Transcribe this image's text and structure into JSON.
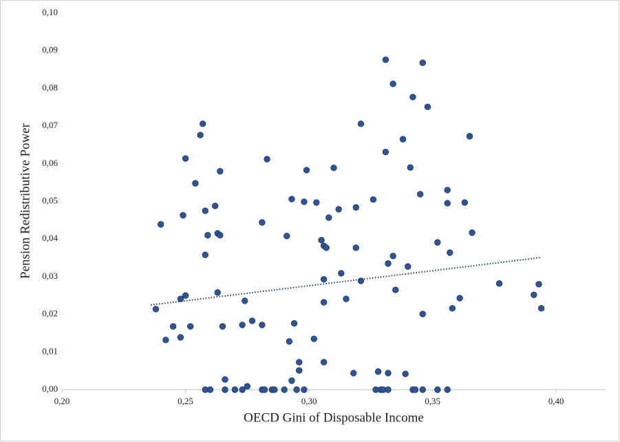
{
  "chart_data": {
    "type": "scatter",
    "x_label": "OECD Gini of Disposable Income",
    "y_label": "Pension Redistributive Power",
    "series": [
      {
        "color": "#2f5496",
        "x": [
          0.238,
          0.24,
          0.242,
          0.245,
          0.248,
          0.248,
          0.249,
          0.25,
          0.25,
          0.252,
          0.254,
          0.256,
          0.257,
          0.258,
          0.258,
          0.259,
          0.258,
          0.26,
          0.262,
          0.263,
          0.263,
          0.264,
          0.264,
          0.265,
          0.266,
          0.266,
          0.27,
          0.273,
          0.274,
          0.273,
          0.275,
          0.277,
          0.281,
          0.281,
          0.281,
          0.282,
          0.283,
          0.285,
          0.286,
          0.29,
          0.291,
          0.292,
          0.293,
          0.293,
          0.294,
          0.295,
          0.296,
          0.296,
          0.298,
          0.298,
          0.299,
          0.302,
          0.303,
          0.305,
          0.306,
          0.306,
          0.306,
          0.306,
          0.307,
          0.308,
          0.31,
          0.312,
          0.313,
          0.315,
          0.318,
          0.319,
          0.319,
          0.321,
          0.321,
          0.326,
          0.327,
          0.328,
          0.329,
          0.33,
          0.331,
          0.331,
          0.332,
          0.332,
          0.332,
          0.334,
          0.334,
          0.335,
          0.338,
          0.339,
          0.34,
          0.341,
          0.342,
          0.342,
          0.343,
          0.345,
          0.346,
          0.346,
          0.346,
          0.348,
          0.352,
          0.352,
          0.356,
          0.356,
          0.356,
          0.357,
          0.358,
          0.361,
          0.363,
          0.365,
          0.366,
          0.377,
          0.391,
          0.393,
          0.394
        ],
        "y": [
          0.0214,
          0.0439,
          0.0132,
          0.0168,
          0.0241,
          0.0139,
          0.0463,
          0.0614,
          0.025,
          0.0168,
          0.0548,
          0.0676,
          0.0706,
          0.0475,
          0.0358,
          0.041,
          0,
          0,
          0.0488,
          0.0415,
          0.0258,
          0.058,
          0.041,
          0.0168,
          0.0027,
          0,
          0,
          0.0172,
          0.0236,
          0,
          0.0009,
          0.0183,
          0.0444,
          0.0172,
          0,
          0,
          0.0612,
          0,
          0,
          0,
          0.0408,
          0.0128,
          0.0506,
          0.0024,
          0.0176,
          0,
          0.0073,
          0.0051,
          0.0499,
          0,
          0.0583,
          0.0135,
          0.0497,
          0.0397,
          0.0382,
          0.0293,
          0.0232,
          0.0073,
          0.0377,
          0.0457,
          0.0589,
          0.0479,
          0.0309,
          0.0241,
          0.0044,
          0.0484,
          0.0377,
          0.0706,
          0.0289,
          0.0505,
          0,
          0.0048,
          0,
          0,
          0.0876,
          0.0631,
          0.0335,
          0.0044,
          0,
          0.0812,
          0.0355,
          0.0265,
          0.0665,
          0.0042,
          0.0327,
          0.059,
          0.0777,
          0,
          0,
          0.0519,
          0.0868,
          0.0201,
          0,
          0.0751,
          0.0391,
          0,
          0.053,
          0.0495,
          0,
          0.0364,
          0.0216,
          0.0243,
          0.0497,
          0.0673,
          0.0417,
          0.0282,
          0.0252,
          0.028,
          0.0216
        ]
      }
    ],
    "trendline": {
      "color": "#1f3864",
      "x": [
        0.236,
        0.394
      ],
      "y": [
        0.0225,
        0.0351
      ]
    },
    "xlim": [
      0.2,
      0.42
    ],
    "ylim": [
      0,
      0.1
    ],
    "xticks": [
      {
        "value": 0.2,
        "label": "0,20"
      },
      {
        "value": 0.25,
        "label": "0,25"
      },
      {
        "value": 0.3,
        "label": "0,30"
      },
      {
        "value": 0.35,
        "label": "0,35"
      },
      {
        "value": 0.4,
        "label": "0,40"
      }
    ],
    "yticks": [
      {
        "value": 0,
        "label": "0,00"
      },
      {
        "value": 0.01,
        "label": "0,01"
      },
      {
        "value": 0.02,
        "label": "0,02"
      },
      {
        "value": 0.03,
        "label": "0,03"
      },
      {
        "value": 0.04,
        "label": "0,04"
      },
      {
        "value": 0.05,
        "label": "0,05"
      },
      {
        "value": 0.06,
        "label": "0,06"
      },
      {
        "value": 0.07,
        "label": "0,07"
      },
      {
        "value": 0.08,
        "label": "0,08"
      },
      {
        "value": 0.09,
        "label": "0,09"
      },
      {
        "value": 0.1,
        "label": "0,10"
      }
    ]
  }
}
